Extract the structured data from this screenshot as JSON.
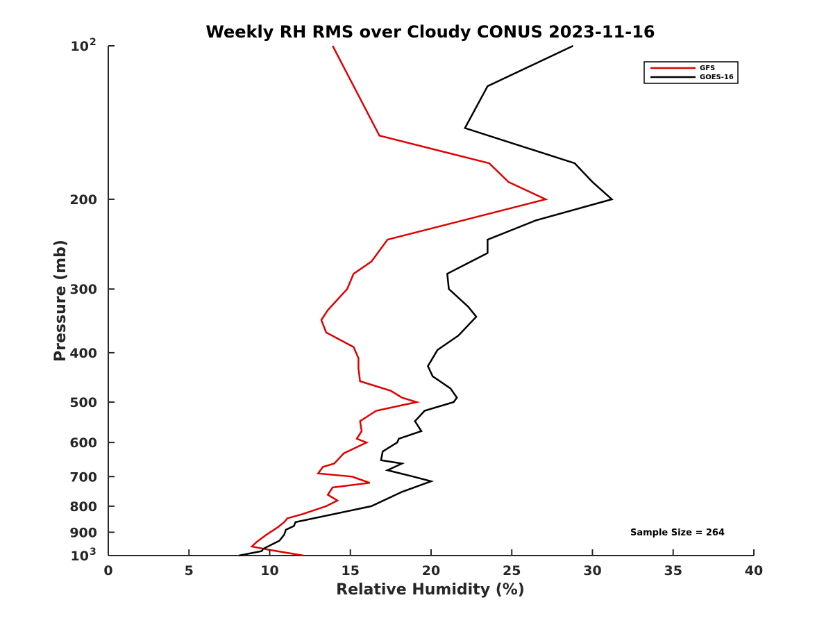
{
  "chart_data": {
    "type": "line",
    "title": "Weekly RH RMS over Cloudy CONUS 2023-11-16",
    "xlabel": "Relative Humidity (%)",
    "ylabel": "Pressure (mb)",
    "xlim": [
      0,
      40
    ],
    "ylim": [
      100,
      1000
    ],
    "y_scale": "log",
    "y_reversed": true,
    "grid": false,
    "legend_position": "top-right",
    "x_ticks": [
      {
        "value": 0,
        "label": "0"
      },
      {
        "value": 5,
        "label": "5"
      },
      {
        "value": 10,
        "label": "10"
      },
      {
        "value": 15,
        "label": "15"
      },
      {
        "value": 20,
        "label": "20"
      },
      {
        "value": 25,
        "label": "25"
      },
      {
        "value": 30,
        "label": "30"
      },
      {
        "value": 35,
        "label": "35"
      },
      {
        "value": 40,
        "label": "40"
      }
    ],
    "y_ticks": [
      {
        "value": 100,
        "label": "10",
        "sup": "2"
      },
      {
        "value": 200,
        "label": "200",
        "sup": ""
      },
      {
        "value": 300,
        "label": "300",
        "sup": ""
      },
      {
        "value": 400,
        "label": "400",
        "sup": ""
      },
      {
        "value": 500,
        "label": "500",
        "sup": ""
      },
      {
        "value": 600,
        "label": "600",
        "sup": ""
      },
      {
        "value": 700,
        "label": "700",
        "sup": ""
      },
      {
        "value": 800,
        "label": "800",
        "sup": ""
      },
      {
        "value": 900,
        "label": "900",
        "sup": ""
      },
      {
        "value": 1000,
        "label": "10",
        "sup": "3"
      }
    ],
    "series": [
      {
        "name": "GFS",
        "color": "#e00000",
        "points": [
          [
            13.9,
            100
          ],
          [
            16.8,
            150
          ],
          [
            23.6,
            170
          ],
          [
            24.8,
            185
          ],
          [
            27.1,
            200
          ],
          [
            17.3,
            240
          ],
          [
            16.3,
            265
          ],
          [
            15.2,
            280
          ],
          [
            14.8,
            300
          ],
          [
            13.6,
            330
          ],
          [
            13.2,
            345
          ],
          [
            13.5,
            365
          ],
          [
            15.2,
            390
          ],
          [
            15.5,
            410
          ],
          [
            15.5,
            430
          ],
          [
            15.6,
            455
          ],
          [
            17.5,
            475
          ],
          [
            18.2,
            490
          ],
          [
            19.1,
            500
          ],
          [
            16.6,
            520
          ],
          [
            15.6,
            545
          ],
          [
            15.7,
            570
          ],
          [
            15.4,
            590
          ],
          [
            16.0,
            600
          ],
          [
            14.6,
            630
          ],
          [
            14.0,
            660
          ],
          [
            13.3,
            670
          ],
          [
            13.0,
            690
          ],
          [
            15.1,
            700
          ],
          [
            16.2,
            720
          ],
          [
            13.9,
            735
          ],
          [
            13.6,
            760
          ],
          [
            14.2,
            780
          ],
          [
            13.5,
            800
          ],
          [
            12.0,
            830
          ],
          [
            11.1,
            845
          ],
          [
            10.9,
            860
          ],
          [
            10.5,
            880
          ],
          [
            9.8,
            910
          ],
          [
            9.2,
            940
          ],
          [
            8.9,
            960
          ],
          [
            10.0,
            975
          ],
          [
            12.1,
            1000
          ]
        ]
      },
      {
        "name": "GOES-16",
        "color": "#000000",
        "points": [
          [
            28.8,
            100
          ],
          [
            23.5,
            120
          ],
          [
            22.1,
            145
          ],
          [
            28.9,
            170
          ],
          [
            30.0,
            185
          ],
          [
            31.2,
            200
          ],
          [
            26.5,
            220
          ],
          [
            23.5,
            240
          ],
          [
            23.5,
            255
          ],
          [
            21.0,
            280
          ],
          [
            21.1,
            300
          ],
          [
            22.3,
            325
          ],
          [
            22.8,
            340
          ],
          [
            21.7,
            370
          ],
          [
            20.4,
            395
          ],
          [
            19.8,
            425
          ],
          [
            20.1,
            445
          ],
          [
            21.2,
            470
          ],
          [
            21.6,
            490
          ],
          [
            21.4,
            500
          ],
          [
            19.6,
            520
          ],
          [
            19.0,
            545
          ],
          [
            19.4,
            570
          ],
          [
            18.0,
            590
          ],
          [
            17.9,
            600
          ],
          [
            17.0,
            625
          ],
          [
            16.9,
            650
          ],
          [
            18.2,
            660
          ],
          [
            17.3,
            680
          ],
          [
            18.9,
            700
          ],
          [
            20.0,
            715
          ],
          [
            18.2,
            750
          ],
          [
            16.3,
            800
          ],
          [
            11.6,
            860
          ],
          [
            11.5,
            875
          ],
          [
            11.0,
            890
          ],
          [
            10.9,
            910
          ],
          [
            10.6,
            935
          ],
          [
            9.6,
            970
          ],
          [
            9.5,
            980
          ],
          [
            8.1,
            1000
          ]
        ]
      }
    ],
    "annotations": [
      {
        "text": "Sample Size = 264"
      }
    ]
  }
}
